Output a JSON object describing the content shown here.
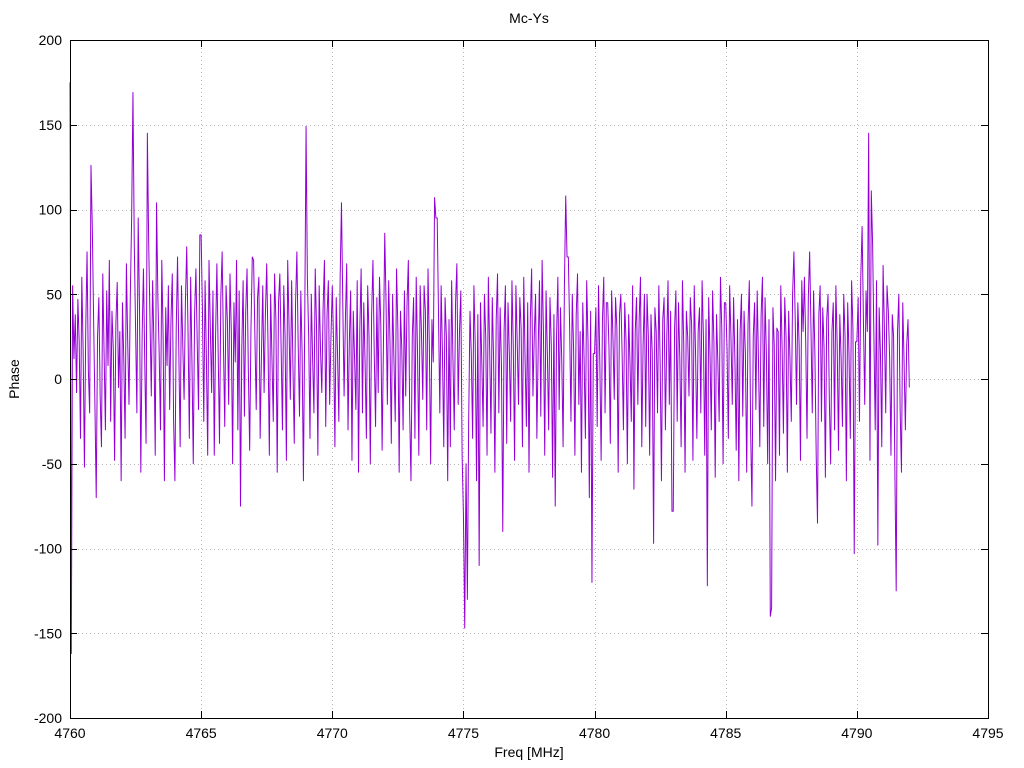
{
  "chart_data": {
    "type": "line",
    "title": "Mc-Ys",
    "xlabel": "Freq [MHz]",
    "ylabel": "Phase",
    "xlim": [
      4760,
      4795
    ],
    "ylim": [
      -200,
      200
    ],
    "x_ticks": [
      4760,
      4765,
      4770,
      4775,
      4780,
      4785,
      4790,
      4795
    ],
    "y_ticks": [
      -200,
      -150,
      -100,
      -50,
      0,
      50,
      100,
      150,
      200
    ],
    "grid": true,
    "legend_position": "none",
    "line_color": "#9400D3",
    "grid_color": "#b8b8b8",
    "axis_color": "#000000",
    "series": [
      {
        "name": "Mc-Ys",
        "x_start": 4760,
        "x_step": 0.05,
        "values": [
          175,
          -162,
          55,
          12,
          38,
          -8,
          47,
          22,
          -35,
          60,
          18,
          -52,
          30,
          75,
          5,
          -20,
          126,
          90,
          35,
          -15,
          -70,
          25,
          48,
          -10,
          -40,
          62,
          15,
          -30,
          52,
          8,
          70,
          -25,
          40,
          18,
          -48,
          33,
          57,
          -5,
          28,
          -60,
          45,
          12,
          -35,
          68,
          22,
          -15,
          50,
          95,
          169,
          80,
          30,
          -20,
          95,
          42,
          -55,
          25,
          65,
          10,
          -38,
          145,
          80,
          35,
          -10,
          58,
          20,
          -45,
          104,
          48,
          15,
          -30,
          70,
          25,
          -60,
          42,
          8,
          55,
          -18,
          35,
          62,
          -25,
          -60,
          30,
          72,
          15,
          -40,
          55,
          20,
          -12,
          45,
          78,
          28,
          -35,
          60,
          10,
          -50,
          38,
          65,
          22,
          -18,
          85,
          85,
          40,
          -25,
          58,
          12,
          -45,
          70,
          30,
          -8,
          52,
          -45,
          25,
          68,
          15,
          -38,
          48,
          75,
          20,
          -28,
          55,
          35,
          -15,
          62,
          28,
          -50,
          45,
          10,
          70,
          -30,
          52,
          -75,
          18,
          58,
          -22,
          40,
          65,
          5,
          -42,
          30,
          72,
          70,
          25,
          -18,
          48,
          60,
          -35,
          15,
          55,
          -8,
          38,
          68,
          20,
          -45,
          50,
          12,
          -25,
          62,
          35,
          -55,
          45,
          62,
          18,
          -30,
          55,
          25,
          -48,
          70,
          32,
          -12,
          58,
          8,
          -38,
          45,
          75,
          20,
          -22,
          52,
          15,
          -60,
          35,
          149,
          60,
          25,
          -35,
          50,
          12,
          -20,
          65,
          30,
          -45,
          55,
          18,
          -8,
          42,
          70,
          -28,
          38,
          58,
          -15,
          25,
          55,
          20,
          -40,
          48,
          15,
          -25,
          60,
          104,
          45,
          -10,
          35,
          68,
          -30,
          22,
          52,
          -48,
          40,
          12,
          -18,
          58,
          -55,
          30,
          65,
          -20,
          45,
          10,
          -35,
          55,
          25,
          -50,
          38,
          70,
          15,
          -28,
          48,
          -8,
          60,
          32,
          -42,
          20,
          86,
          45,
          -15,
          58,
          22,
          -38,
          50,
          12,
          -25,
          65,
          30,
          -55,
          40,
          18,
          -30,
          52,
          -10,
          45,
          70,
          -20,
          -60,
          25,
          48,
          -35,
          60,
          15,
          -45,
          55,
          28,
          -12,
          55,
          40,
          -30,
          65,
          20,
          -50,
          35,
          10,
          107,
          95,
          95,
          38,
          -20,
          55,
          15,
          -40,
          48,
          25,
          -60,
          35,
          -40,
          58,
          12,
          -30,
          45,
          68,
          -15,
          28,
          52,
          -45,
          -80,
          -147,
          -50,
          -130,
          -25,
          40,
          15,
          -35,
          55,
          20,
          -60,
          38,
          -110,
          45,
          10,
          -28,
          50,
          25,
          -45,
          60,
          18,
          -32,
          48,
          12,
          -55,
          35,
          62,
          -20,
          42,
          8,
          -90,
          28,
          55,
          -38,
          45,
          15,
          -25,
          58,
          20,
          -48,
          55,
          22,
          -15,
          48,
          30,
          -40,
          60,
          12,
          -28,
          45,
          -55,
          35,
          65,
          -10,
          25,
          50,
          -35,
          18,
          58,
          -22,
          70,
          28,
          -45,
          52,
          15,
          -30,
          48,
          20,
          -58,
          38,
          -75,
          25,
          60,
          -18,
          42,
          10,
          -40,
          55,
          108,
          72,
          72,
          30,
          -25,
          50,
          18,
          -45,
          38,
          62,
          -15,
          28,
          -55,
          45,
          12,
          -35,
          58,
          22,
          -70,
          40,
          -120,
          15,
          15,
          42,
          -28,
          55,
          10,
          -48,
          35,
          60,
          -20,
          45,
          45,
          18,
          -38,
          52,
          25,
          -12,
          48,
          30,
          -55,
          38,
          50,
          15,
          -30,
          45,
          22,
          -50,
          38,
          10,
          -25,
          55,
          -65,
          28,
          48,
          -15,
          35,
          60,
          -40,
          20,
          50,
          -28,
          50,
          25,
          -45,
          38,
          15,
          -97,
          42,
          28,
          -20,
          55,
          10,
          -60,
          35,
          48,
          -30,
          22,
          58,
          -15,
          40,
          -78,
          -78,
          30,
          52,
          -25,
          45,
          12,
          -40,
          58,
          20,
          -55,
          40,
          25,
          -10,
          48,
          32,
          -48,
          55,
          15,
          -35,
          28,
          42,
          -20,
          58,
          25,
          -45,
          35,
          -122,
          48,
          15,
          -30,
          52,
          22,
          -58,
          38,
          10,
          -25,
          60,
          30,
          -50,
          45,
          45,
          18,
          -35,
          55,
          25,
          -15,
          48,
          12,
          -42,
          35,
          -60,
          28,
          50,
          -22,
          40,
          15,
          -55,
          32,
          58,
          -30,
          -75,
          25,
          45,
          -18,
          52,
          10,
          -40,
          38,
          60,
          -28,
          48,
          15,
          -50,
          35,
          -140,
          -135,
          42,
          20,
          -60,
          30,
          28,
          -45,
          55,
          18,
          -32,
          48,
          25,
          -55,
          40,
          12,
          -25,
          50,
          75,
          35,
          -15,
          45,
          20,
          -48,
          58,
          28,
          60,
          22,
          -35,
          48,
          75,
          30,
          -20,
          52,
          15,
          -45,
          -85,
          38,
          55,
          -25,
          42,
          18,
          -58,
          35,
          50,
          -12,
          -50,
          28,
          45,
          -30,
          55,
          20,
          -42,
          38,
          12,
          -28,
          50,
          25,
          -60,
          45,
          15,
          -35,
          58,
          30,
          -103,
          22,
          22,
          48,
          -25,
          60,
          90,
          35,
          -15,
          52,
          28,
          145,
          -48,
          111,
          80,
          25,
          -30,
          58,
          -98,
          42,
          15,
          -40,
          67,
          30,
          -20,
          55,
          40,
          12,
          -45,
          38,
          25,
          -55,
          -125,
          28,
          50,
          -18,
          -55,
          45,
          10,
          -30,
          20,
          35,
          -5
        ]
      }
    ]
  }
}
